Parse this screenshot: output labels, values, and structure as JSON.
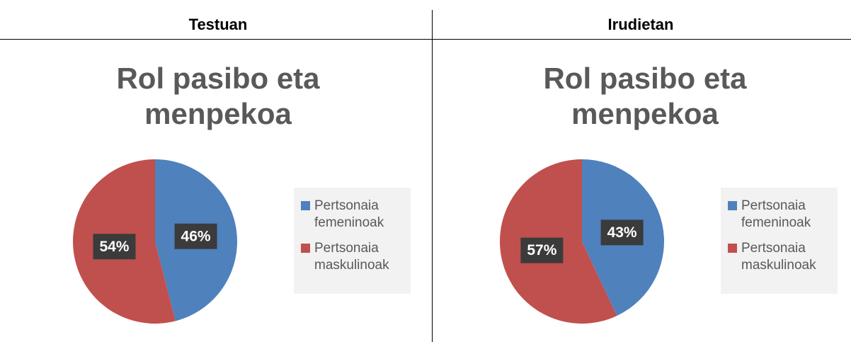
{
  "table": {
    "headers": [
      "Testuan",
      "Irudietan"
    ]
  },
  "chart_data": [
    {
      "type": "pie",
      "title": "Rol pasibo eta menpekoa",
      "categories": [
        "Pertsonaia femeninoak",
        "Pertsonaia maskulinoak"
      ],
      "values": [
        46,
        54
      ],
      "value_labels": [
        "46%",
        "54%"
      ],
      "colors": [
        "#4f81bd",
        "#c0504d"
      ],
      "legend": "right"
    },
    {
      "type": "pie",
      "title": "Rol pasibo eta menpekoa",
      "categories": [
        "Pertsonaia femeninoak",
        "Pertsonaia maskulinoak"
      ],
      "values": [
        43,
        57
      ],
      "value_labels": [
        "43%",
        "57%"
      ],
      "colors": [
        "#4f81bd",
        "#c0504d"
      ],
      "legend": "right"
    }
  ]
}
